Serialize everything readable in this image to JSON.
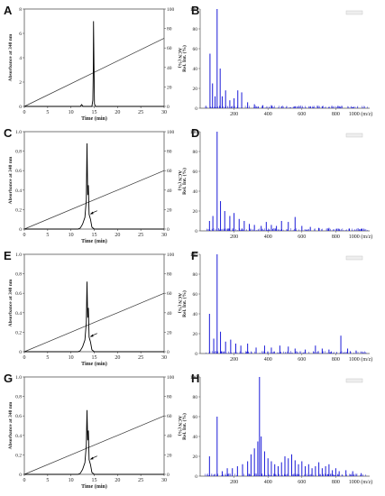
{
  "panels": [
    "A",
    "B",
    "C",
    "D",
    "E",
    "F",
    "G",
    "H"
  ],
  "chrom": {
    "ylabel": "Absorbance at 340 nm",
    "y2label": "ACN (%)",
    "xlabel": "Time (min)",
    "xticks": [
      "0",
      "5",
      "10",
      "15",
      "20",
      "25",
      "30"
    ],
    "y2ticks": [
      "0",
      "20",
      "40",
      "60",
      "80",
      "100"
    ]
  },
  "ms": {
    "ylabel": "Rel. Int. (%)",
    "xlabel": "1000 (m/z)",
    "xticks": [
      "200",
      "400",
      "600",
      "800"
    ],
    "yticks": [
      "0",
      "20",
      "40",
      "60",
      "80",
      "100"
    ]
  },
  "chart_data": [
    {
      "panel": "A",
      "type": "line",
      "xlabel": "Time (min)",
      "ylabel": "Absorbance at 340 nm",
      "y2label": "ACN (%)",
      "xlim": [
        0,
        30
      ],
      "ylim": [
        0,
        8
      ],
      "y2lim": [
        0,
        100
      ],
      "yticks": [
        "0",
        "2",
        "4",
        "6",
        "8"
      ],
      "trace": [
        [
          0,
          0
        ],
        [
          12,
          0
        ],
        [
          12.3,
          0.15
        ],
        [
          12.6,
          0
        ],
        [
          14.5,
          0
        ],
        [
          14.7,
          0.5
        ],
        [
          14.8,
          3.0
        ],
        [
          14.85,
          7.0
        ],
        [
          14.95,
          3.5
        ],
        [
          15.05,
          0.2
        ],
        [
          15.3,
          0
        ],
        [
          30,
          0
        ]
      ],
      "gradient": [
        [
          0,
          0
        ],
        [
          30,
          70
        ]
      ]
    },
    {
      "panel": "B",
      "type": "bar",
      "xlabel": "1000 (m/z)",
      "ylabel": "Rel. Int. (%)",
      "xlim": [
        0,
        1000
      ],
      "ylim": [
        0,
        100
      ],
      "peaks": [
        [
          58,
          55
        ],
        [
          73,
          25
        ],
        [
          88,
          12
        ],
        [
          100,
          100
        ],
        [
          118,
          40
        ],
        [
          130,
          12
        ],
        [
          150,
          18
        ],
        [
          175,
          8
        ],
        [
          200,
          10
        ],
        [
          222,
          18
        ],
        [
          245,
          16
        ],
        [
          280,
          6
        ],
        [
          320,
          4
        ],
        [
          370,
          3
        ],
        [
          420,
          3
        ],
        [
          480,
          2
        ],
        [
          560,
          2
        ],
        [
          650,
          2
        ],
        [
          720,
          2
        ],
        [
          820,
          2
        ],
        [
          900,
          1
        ]
      ]
    },
    {
      "panel": "C",
      "type": "line",
      "xlabel": "Time (min)",
      "ylabel": "Absorbance at 340 nm",
      "y2label": "ACN (%)",
      "xlim": [
        0,
        30
      ],
      "ylim": [
        0,
        1.0
      ],
      "y2lim": [
        0,
        100
      ],
      "yticks": [
        "0",
        "0.2",
        "0.4",
        "0.6",
        "0.8",
        "1.0"
      ],
      "trace": [
        [
          0,
          0
        ],
        [
          11.5,
          0
        ],
        [
          12,
          0.01
        ],
        [
          12.5,
          0.05
        ],
        [
          13,
          0.12
        ],
        [
          13.3,
          0.3
        ],
        [
          13.45,
          0.88
        ],
        [
          13.6,
          0.35
        ],
        [
          13.75,
          0.45
        ],
        [
          13.9,
          0.15
        ],
        [
          14.2,
          0.1
        ],
        [
          14.5,
          0.02
        ],
        [
          15,
          0
        ],
        [
          30,
          0
        ]
      ],
      "gradient": [
        [
          0,
          0
        ],
        [
          30,
          60
        ]
      ]
    },
    {
      "panel": "D",
      "type": "bar",
      "xlabel": "1000 (m/z)",
      "ylabel": "Rel. Int. (%)",
      "xlim": [
        0,
        1000
      ],
      "ylim": [
        0,
        100
      ],
      "peaks": [
        [
          55,
          10
        ],
        [
          75,
          15
        ],
        [
          100,
          100
        ],
        [
          120,
          30
        ],
        [
          145,
          20
        ],
        [
          175,
          15
        ],
        [
          200,
          18
        ],
        [
          230,
          12
        ],
        [
          260,
          10
        ],
        [
          290,
          7
        ],
        [
          320,
          6
        ],
        [
          360,
          5
        ],
        [
          390,
          9
        ],
        [
          420,
          6
        ],
        [
          450,
          5
        ],
        [
          480,
          10
        ],
        [
          520,
          9
        ],
        [
          560,
          14
        ],
        [
          600,
          5
        ],
        [
          650,
          4
        ],
        [
          700,
          3
        ],
        [
          760,
          3
        ],
        [
          820,
          2
        ],
        [
          880,
          2
        ],
        [
          950,
          2
        ]
      ]
    },
    {
      "panel": "E",
      "type": "line",
      "xlabel": "Time (min)",
      "ylabel": "Absorbance at 340 nm",
      "y2label": "ACN (%)",
      "xlim": [
        0,
        30
      ],
      "ylim": [
        0,
        1.0
      ],
      "y2lim": [
        0,
        100
      ],
      "yticks": [
        "0",
        "0.2",
        "0.4",
        "0.6",
        "0.8",
        "1.0"
      ],
      "trace": [
        [
          0,
          0
        ],
        [
          11.5,
          0
        ],
        [
          12,
          0.01
        ],
        [
          12.5,
          0.05
        ],
        [
          13,
          0.12
        ],
        [
          13.3,
          0.3
        ],
        [
          13.45,
          0.72
        ],
        [
          13.6,
          0.35
        ],
        [
          13.75,
          0.45
        ],
        [
          13.9,
          0.15
        ],
        [
          14.2,
          0.1
        ],
        [
          14.5,
          0.02
        ],
        [
          15,
          0
        ],
        [
          30,
          0
        ]
      ],
      "gradient": [
        [
          0,
          0
        ],
        [
          30,
          60
        ]
      ]
    },
    {
      "panel": "F",
      "type": "bar",
      "xlabel": "1000 (m/z)",
      "ylabel": "Rel. Int. (%)",
      "xlim": [
        0,
        1000
      ],
      "ylim": [
        0,
        100
      ],
      "peaks": [
        [
          55,
          40
        ],
        [
          80,
          15
        ],
        [
          100,
          100
        ],
        [
          120,
          22
        ],
        [
          150,
          12
        ],
        [
          180,
          14
        ],
        [
          210,
          10
        ],
        [
          240,
          8
        ],
        [
          280,
          10
        ],
        [
          330,
          6
        ],
        [
          380,
          8
        ],
        [
          420,
          6
        ],
        [
          470,
          8
        ],
        [
          520,
          7
        ],
        [
          560,
          5
        ],
        [
          620,
          4
        ],
        [
          680,
          8
        ],
        [
          720,
          5
        ],
        [
          760,
          4
        ],
        [
          830,
          18
        ],
        [
          870,
          5
        ],
        [
          920,
          3
        ]
      ]
    },
    {
      "panel": "G",
      "type": "line",
      "xlabel": "Time (min)",
      "ylabel": "Absorbance at 340 nm",
      "y2label": "ACN (%)",
      "xlim": [
        0,
        30
      ],
      "ylim": [
        0,
        1.0
      ],
      "y2lim": [
        0,
        100
      ],
      "yticks": [
        "0",
        "0.2",
        "0.4",
        "0.6",
        "0.8",
        "1.0"
      ],
      "trace": [
        [
          0,
          0
        ],
        [
          11.5,
          0
        ],
        [
          12,
          0.01
        ],
        [
          12.5,
          0.05
        ],
        [
          13,
          0.12
        ],
        [
          13.3,
          0.3
        ],
        [
          13.45,
          0.66
        ],
        [
          13.6,
          0.35
        ],
        [
          13.75,
          0.45
        ],
        [
          13.9,
          0.15
        ],
        [
          14.2,
          0.1
        ],
        [
          14.5,
          0.02
        ],
        [
          15,
          0
        ],
        [
          30,
          0
        ]
      ],
      "gradient": [
        [
          0,
          0
        ],
        [
          30,
          60
        ]
      ]
    },
    {
      "panel": "H",
      "type": "bar",
      "xlabel": "1000 (m/z)",
      "ylabel": "Rel. Int. (%)",
      "xlim": [
        0,
        1000
      ],
      "ylim": [
        0,
        100
      ],
      "peaks": [
        [
          55,
          20
        ],
        [
          100,
          60
        ],
        [
          130,
          5
        ],
        [
          160,
          8
        ],
        [
          190,
          8
        ],
        [
          220,
          10
        ],
        [
          250,
          12
        ],
        [
          280,
          15
        ],
        [
          300,
          22
        ],
        [
          320,
          28
        ],
        [
          340,
          35
        ],
        [
          350,
          100
        ],
        [
          360,
          40
        ],
        [
          380,
          25
        ],
        [
          400,
          18
        ],
        [
          420,
          15
        ],
        [
          440,
          12
        ],
        [
          460,
          10
        ],
        [
          480,
          14
        ],
        [
          500,
          20
        ],
        [
          520,
          18
        ],
        [
          540,
          22
        ],
        [
          560,
          16
        ],
        [
          580,
          12
        ],
        [
          600,
          15
        ],
        [
          620,
          10
        ],
        [
          640,
          12
        ],
        [
          660,
          8
        ],
        [
          680,
          10
        ],
        [
          700,
          14
        ],
        [
          720,
          8
        ],
        [
          740,
          10
        ],
        [
          760,
          12
        ],
        [
          780,
          6
        ],
        [
          800,
          8
        ],
        [
          820,
          5
        ],
        [
          860,
          6
        ],
        [
          900,
          5
        ],
        [
          950,
          3
        ]
      ]
    }
  ]
}
